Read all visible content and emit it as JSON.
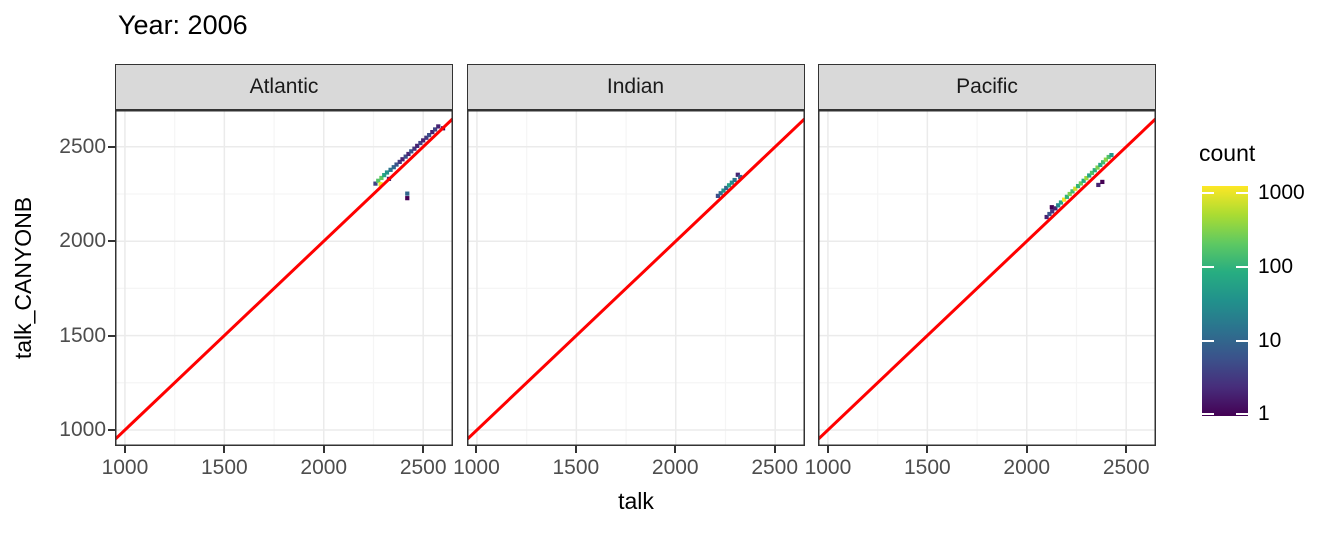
{
  "title": "Year: 2006",
  "axes": {
    "x_label": "talk",
    "y_label": "talk_CANYONB",
    "x_ticks": [
      1000,
      1500,
      2000,
      2500
    ],
    "y_ticks": [
      1000,
      1500,
      2000,
      2500
    ],
    "x_minor_ticks": [
      1250,
      1750,
      2250
    ],
    "y_minor_ticks": [
      1250,
      1750,
      2250
    ],
    "x_range": [
      950,
      2650
    ],
    "y_range": [
      915,
      2695
    ]
  },
  "legend": {
    "title": "count",
    "scale": "log10",
    "tick_labels": [
      "1000",
      "100",
      "10",
      "1"
    ],
    "tick_values": [
      1000,
      100,
      10,
      1
    ],
    "tick_fractions_from_top": [
      0.03,
      0.353,
      0.672,
      0.991
    ],
    "viridis_stops": [
      "#440154",
      "#472d7b",
      "#3b528b",
      "#2c728e",
      "#21918c",
      "#27ad81",
      "#5ec962",
      "#aadc32",
      "#fde725"
    ]
  },
  "colors": {
    "red_line": "#ff0000",
    "strip_fill": "#d9d9d9",
    "panel_border": "#333333",
    "grid_major": "#ebebeb",
    "grid_minor": "#f5f5f5",
    "tick_label": "#4d4d4d",
    "background": "#ffffff"
  },
  "chart_data": {
    "type": "heatmap",
    "subtype": "geom_bin2d_faceted",
    "title": "Year: 2006",
    "xlabel": "talk",
    "ylabel": "talk_CANYONB",
    "x_range": [
      950,
      2650
    ],
    "y_range": [
      915,
      2695
    ],
    "bin_size": 20,
    "grid": true,
    "legend_position": "right",
    "reference_line": {
      "type": "identity",
      "slope": 1,
      "intercept": 0,
      "color": "#ff0000"
    },
    "count_scale": {
      "min": 1,
      "max": 1000,
      "transform": "log10"
    },
    "facets": [
      {
        "label": "Atlantic",
        "tiles": [
          [
            2260,
            2305,
            4
          ],
          [
            2274,
            2320,
            150
          ],
          [
            2286,
            2302,
            900
          ],
          [
            2290,
            2335,
            180
          ],
          [
            2304,
            2350,
            60
          ],
          [
            2318,
            2364,
            35
          ],
          [
            2328,
            2330,
            2
          ],
          [
            2336,
            2378,
            15
          ],
          [
            2352,
            2392,
            10
          ],
          [
            2366,
            2406,
            6
          ],
          [
            2382,
            2420,
            3
          ],
          [
            2396,
            2434,
            2
          ],
          [
            2412,
            2448,
            5
          ],
          [
            2426,
            2462,
            2
          ],
          [
            2440,
            2476,
            6
          ],
          [
            2456,
            2490,
            3
          ],
          [
            2470,
            2505,
            2
          ],
          [
            2486,
            2520,
            4
          ],
          [
            2500,
            2534,
            2
          ],
          [
            2516,
            2548,
            3
          ],
          [
            2530,
            2562,
            5
          ],
          [
            2546,
            2578,
            2
          ],
          [
            2560,
            2592,
            4
          ],
          [
            2576,
            2608,
            2
          ],
          [
            2600,
            2598,
            1
          ],
          [
            2420,
            2252,
            10
          ],
          [
            2420,
            2228,
            1
          ]
        ]
      },
      {
        "label": "Indian",
        "tiles": [
          [
            2212,
            2240,
            5
          ],
          [
            2226,
            2254,
            12
          ],
          [
            2240,
            2268,
            35
          ],
          [
            2254,
            2282,
            10
          ],
          [
            2268,
            2296,
            50
          ],
          [
            2282,
            2310,
            30
          ],
          [
            2296,
            2324,
            15
          ],
          [
            2312,
            2352,
            2
          ],
          [
            2324,
            2340,
            8
          ]
        ]
      },
      {
        "label": "Pacific",
        "tiles": [
          [
            2100,
            2128,
            2
          ],
          [
            2114,
            2144,
            6
          ],
          [
            2128,
            2158,
            3
          ],
          [
            2126,
            2180,
            1
          ],
          [
            2144,
            2174,
            2
          ],
          [
            2158,
            2190,
            25
          ],
          [
            2172,
            2205,
            60
          ],
          [
            2188,
            2220,
            900
          ],
          [
            2202,
            2235,
            90
          ],
          [
            2216,
            2250,
            250
          ],
          [
            2230,
            2264,
            120
          ],
          [
            2244,
            2278,
            600
          ],
          [
            2258,
            2292,
            90
          ],
          [
            2272,
            2306,
            200
          ],
          [
            2286,
            2320,
            70
          ],
          [
            2300,
            2334,
            350
          ],
          [
            2314,
            2348,
            60
          ],
          [
            2328,
            2362,
            150
          ],
          [
            2342,
            2376,
            80
          ],
          [
            2356,
            2390,
            250
          ],
          [
            2370,
            2404,
            60
          ],
          [
            2384,
            2418,
            120
          ],
          [
            2398,
            2432,
            300
          ],
          [
            2412,
            2446,
            150
          ],
          [
            2426,
            2456,
            40
          ],
          [
            2360,
            2298,
            2
          ],
          [
            2380,
            2314,
            1
          ]
        ]
      }
    ]
  }
}
